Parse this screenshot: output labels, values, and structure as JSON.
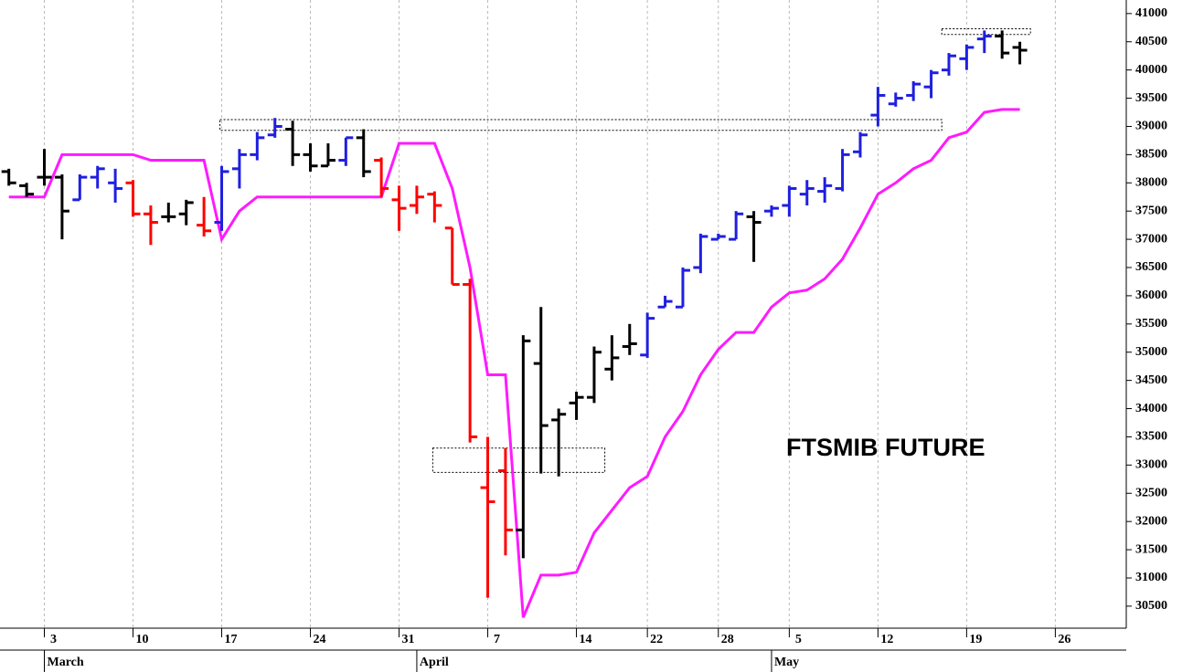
{
  "chart_data": {
    "type": "ohlc",
    "annotation": "FTSMIB FUTURE",
    "x": [
      -2,
      -1,
      0,
      1,
      2,
      3,
      4,
      5,
      6,
      7,
      8,
      9,
      10,
      11,
      12,
      13,
      14,
      15,
      16,
      17,
      18,
      19,
      20,
      21,
      22,
      23,
      24,
      25,
      26,
      27,
      28,
      29,
      30,
      31,
      32,
      33,
      34,
      35,
      36,
      37,
      38,
      39,
      40,
      41,
      42,
      43,
      44,
      45,
      46,
      47,
      48,
      49,
      50,
      51,
      52,
      53,
      54,
      55
    ],
    "open": [
      38200,
      37950,
      38100,
      38100,
      37700,
      38100,
      38000,
      38000,
      37450,
      37400,
      37450,
      37250,
      37300,
      38250,
      38500,
      38850,
      38950,
      38500,
      38300,
      38400,
      38800,
      38400,
      37700,
      37600,
      37800,
      37200,
      36200,
      32600,
      32900,
      31850,
      34800,
      33800,
      34100,
      34200,
      34700,
      35100,
      34950,
      35800,
      35800,
      36500,
      37000,
      37000,
      37400,
      37500,
      37600,
      37800,
      37850,
      37900,
      38550,
      39200,
      39400,
      39550,
      39700,
      40000,
      40200,
      40550,
      40600,
      40400
    ],
    "high": [
      38250,
      38000,
      38600,
      38150,
      38150,
      38300,
      38250,
      38050,
      37600,
      37650,
      37700,
      37750,
      38300,
      38600,
      38900,
      39150,
      39100,
      38700,
      38700,
      38800,
      38950,
      38450,
      37950,
      37950,
      37850,
      37200,
      36300,
      33500,
      33300,
      35300,
      35800,
      34000,
      34300,
      35100,
      35300,
      35500,
      35700,
      36000,
      36500,
      37100,
      37100,
      37500,
      37500,
      37600,
      37950,
      38050,
      38100,
      38600,
      38900,
      39700,
      39600,
      39800,
      40000,
      40300,
      40450,
      40700,
      40700,
      40500
    ],
    "low": [
      37950,
      37750,
      37950,
      37000,
      37700,
      37900,
      37650,
      37400,
      36900,
      37300,
      37250,
      37050,
      37150,
      37900,
      38400,
      38800,
      38300,
      38200,
      38300,
      38300,
      38100,
      37750,
      37150,
      37450,
      37300,
      36200,
      33400,
      30650,
      31400,
      31350,
      32850,
      32800,
      33800,
      34100,
      34500,
      34950,
      34900,
      35800,
      35800,
      36400,
      37000,
      37000,
      36600,
      37400,
      37400,
      37600,
      37650,
      37850,
      38450,
      39000,
      39350,
      39450,
      39500,
      39900,
      40000,
      40300,
      40200,
      40100
    ],
    "close": [
      38000,
      37800,
      38100,
      37500,
      38100,
      38250,
      37900,
      37450,
      37300,
      37400,
      37650,
      37150,
      38200,
      38500,
      38800,
      39000,
      38500,
      38300,
      38400,
      38800,
      38200,
      37900,
      37550,
      37750,
      37600,
      36200,
      33500,
      32350,
      31850,
      35200,
      33700,
      33900,
      34200,
      35000,
      34900,
      35150,
      35600,
      35900,
      36450,
      37050,
      37050,
      37450,
      37300,
      37550,
      37900,
      37900,
      37950,
      38500,
      38850,
      39550,
      39500,
      39750,
      39950,
      40250,
      40400,
      40600,
      40300,
      40350
    ],
    "colors": [
      "#000000",
      "#000000",
      "#000000",
      "#000000",
      "#1f1fe0",
      "#1f1fe0",
      "#1f1fe0",
      "#ff0000",
      "#ff0000",
      "#000000",
      "#000000",
      "#ff0000",
      "#1f1fe0",
      "#1f1fe0",
      "#1f1fe0",
      "#1f1fe0",
      "#000000",
      "#000000",
      "#000000",
      "#1f1fe0",
      "#000000",
      "#ff0000",
      "#ff0000",
      "#ff0000",
      "#ff0000",
      "#ff0000",
      "#ff0000",
      "#ff0000",
      "#ff0000",
      "#000000",
      "#000000",
      "#000000",
      "#000000",
      "#000000",
      "#000000",
      "#000000",
      "#1f1fe0",
      "#1f1fe0",
      "#1f1fe0",
      "#1f1fe0",
      "#1f1fe0",
      "#1f1fe0",
      "#000000",
      "#1f1fe0",
      "#1f1fe0",
      "#1f1fe0",
      "#1f1fe0",
      "#1f1fe0",
      "#1f1fe0",
      "#1f1fe0",
      "#1f1fe0",
      "#1f1fe0",
      "#1f1fe0",
      "#1f1fe0",
      "#1f1fe0",
      "#1f1fe0",
      "#000000",
      "#000000"
    ],
    "stop_line": {
      "color": "#ff1aff",
      "values": [
        37750,
        37750,
        37750,
        38500,
        38500,
        38500,
        38500,
        38500,
        38400,
        38400,
        38400,
        38400,
        37000,
        37500,
        37750,
        37750,
        37750,
        37750,
        37750,
        37750,
        37750,
        37750,
        38700,
        38700,
        38700,
        37900,
        36500,
        34600,
        34600,
        30300,
        31050,
        31050,
        31100,
        31800,
        32200,
        32600,
        32800,
        33500,
        33950,
        34600,
        35050,
        35350,
        35350,
        35800,
        36050,
        36100,
        36300,
        36650,
        37200,
        37800,
        38000,
        38250,
        38400,
        38800,
        38900,
        39250,
        39300,
        39300
      ]
    },
    "zones": [
      {
        "x": [
          9.9,
          50.6
        ],
        "y": [
          38930,
          39120
        ]
      },
      {
        "x": [
          21.9,
          31.6
        ],
        "y": [
          32870,
          33300
        ]
      },
      {
        "x": [
          50.6,
          55.6
        ],
        "y": [
          40630,
          40730
        ]
      }
    ],
    "xlim": [
      -2.5,
      61
    ],
    "ylim": [
      30110,
      41240
    ],
    "xticks": [
      {
        "value": 0,
        "label": "3"
      },
      {
        "value": 5,
        "label": "10"
      },
      {
        "value": 10,
        "label": "17"
      },
      {
        "value": 15,
        "label": "24"
      },
      {
        "value": 20,
        "label": "31"
      },
      {
        "value": 25,
        "label": "7"
      },
      {
        "value": 30,
        "label": "14"
      },
      {
        "value": 34,
        "label": "22"
      },
      {
        "value": 38,
        "label": "28"
      },
      {
        "value": 42,
        "label": "5"
      },
      {
        "value": 47,
        "label": "12"
      },
      {
        "value": 52,
        "label": "19"
      },
      {
        "value": 57,
        "label": "26"
      }
    ],
    "months": [
      {
        "value": 0,
        "label": "March"
      },
      {
        "value": 21,
        "label": "April"
      },
      {
        "value": 41,
        "label": "May"
      }
    ],
    "yticks": [
      30500,
      31000,
      31500,
      32000,
      32500,
      33000,
      33500,
      34000,
      34500,
      35000,
      35500,
      36000,
      36500,
      37000,
      37500,
      38000,
      38500,
      39000,
      39500,
      40000,
      40500,
      41000
    ],
    "grid": true
  }
}
